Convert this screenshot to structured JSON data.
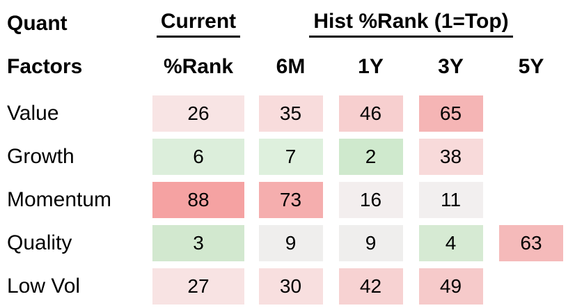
{
  "title": {
    "line1": "Quant",
    "line2": "Factors"
  },
  "header": {
    "current_label": "Current",
    "current_sub": "%Rank",
    "hist_label": "Hist %Rank (1=Top)",
    "col_6m": "6M",
    "col_1y": "1Y",
    "col_3y": "3Y",
    "col_5y": "5Y"
  },
  "rows": [
    {
      "factor": "Value",
      "cells": [
        {
          "v": "26",
          "bg": "#f8e4e4"
        },
        {
          "v": "35",
          "bg": "#f8dcdc"
        },
        {
          "v": "46",
          "bg": "#f7cfcf"
        },
        {
          "v": "65",
          "bg": "#f5b5b5"
        },
        {
          "v": "",
          "bg": ""
        }
      ]
    },
    {
      "factor": "Growth",
      "cells": [
        {
          "v": "6",
          "bg": "#dceedb"
        },
        {
          "v": "7",
          "bg": "#def0dd"
        },
        {
          "v": "2",
          "bg": "#cfe9cd"
        },
        {
          "v": "38",
          "bg": "#f8dada"
        },
        {
          "v": "",
          "bg": ""
        }
      ]
    },
    {
      "factor": "Momentum",
      "cells": [
        {
          "v": "88",
          "bg": "#f5a2a2"
        },
        {
          "v": "73",
          "bg": "#f5aeae"
        },
        {
          "v": "16",
          "bg": "#f3eeee"
        },
        {
          "v": "11",
          "bg": "#f2efef"
        },
        {
          "v": "",
          "bg": ""
        }
      ]
    },
    {
      "factor": "Quality",
      "cells": [
        {
          "v": "3",
          "bg": "#d2e8cf"
        },
        {
          "v": "9",
          "bg": "#efeeed"
        },
        {
          "v": "9",
          "bg": "#efeeed"
        },
        {
          "v": "4",
          "bg": "#d6ead3"
        },
        {
          "v": "63",
          "bg": "#f5baba"
        }
      ]
    },
    {
      "factor": "Low Vol",
      "cells": [
        {
          "v": "27",
          "bg": "#f8e3e3"
        },
        {
          "v": "30",
          "bg": "#f8dfdf"
        },
        {
          "v": "42",
          "bg": "#f7d2d2"
        },
        {
          "v": "49",
          "bg": "#f6caca"
        },
        {
          "v": "",
          "bg": ""
        }
      ]
    }
  ],
  "colors": {
    "text": "#000000",
    "underline": "#000000",
    "scale_low_green": "#cfe9cd",
    "scale_mid_white": "#f2efef",
    "scale_high_red": "#f5a2a2"
  },
  "chart_data": {
    "type": "heatmap",
    "title": "Quant Factors %Rank (1=Top)",
    "row_labels": [
      "Value",
      "Growth",
      "Momentum",
      "Quality",
      "Low Vol"
    ],
    "col_labels": [
      "Current %Rank",
      "6M",
      "1Y",
      "3Y",
      "5Y"
    ],
    "values": [
      [
        26,
        35,
        46,
        65,
        null
      ],
      [
        6,
        7,
        2,
        38,
        null
      ],
      [
        88,
        73,
        16,
        11,
        null
      ],
      [
        3,
        9,
        9,
        4,
        63
      ],
      [
        27,
        30,
        42,
        49,
        null
      ]
    ],
    "scale": {
      "domain": [
        1,
        100
      ],
      "low_color": "green",
      "mid_color": "white",
      "high_color": "red",
      "note": "1=Top (green), 100=Bottom (red)"
    }
  }
}
